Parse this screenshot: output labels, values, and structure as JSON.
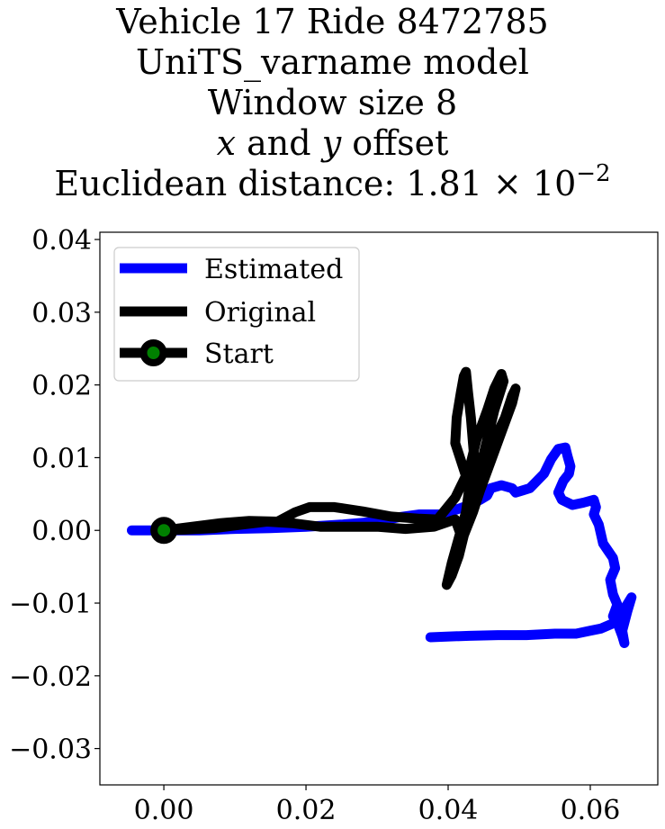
{
  "chart_data": {
    "type": "line",
    "title_lines": [
      "Vehicle 17 Ride 8472785",
      "UniTS_varname model",
      "Window size 8"
    ],
    "title_offset": {
      "x": "x",
      "and": " and ",
      "y": "y",
      "rest": " offset"
    },
    "title_distance": {
      "prefix": "Euclidean distance: ",
      "mantissa": "1.81",
      "times": " × 10",
      "exponent": "−2"
    },
    "xlabel": "",
    "ylabel": "",
    "xlim": [
      -0.009,
      0.0695
    ],
    "ylim": [
      -0.035,
      0.041
    ],
    "xticks": [
      0.0,
      0.02,
      0.04,
      0.06
    ],
    "xtick_labels": [
      "0.00",
      "0.02",
      "0.04",
      "0.06"
    ],
    "yticks": [
      0.04,
      0.03,
      0.02,
      0.01,
      0.0,
      -0.01,
      -0.02,
      -0.03
    ],
    "ytick_labels": [
      "0.04",
      "0.03",
      "0.02",
      "0.01",
      "0.00",
      "−0.01",
      "−0.02",
      "−0.03"
    ],
    "grid": false,
    "legend_position": "upper-left",
    "series": [
      {
        "name": "Estimated",
        "color": "#0000ff",
        "points": [
          [
            -0.0045,
            0.0
          ],
          [
            -0.002,
            0.0
          ],
          [
            0.0,
            0.0
          ],
          [
            0.005,
            0.0
          ],
          [
            0.01,
            0.0002
          ],
          [
            0.015,
            0.0003
          ],
          [
            0.02,
            0.0005
          ],
          [
            0.025,
            0.0008
          ],
          [
            0.03,
            0.0012
          ],
          [
            0.033,
            0.0018
          ],
          [
            0.036,
            0.0022
          ],
          [
            0.039,
            0.0022
          ],
          [
            0.041,
            0.0028
          ],
          [
            0.043,
            0.0035
          ],
          [
            0.0445,
            0.0042
          ],
          [
            0.0455,
            0.0048
          ],
          [
            0.046,
            0.0058
          ],
          [
            0.0475,
            0.0062
          ],
          [
            0.049,
            0.0058
          ],
          [
            0.0495,
            0.0052
          ],
          [
            0.0505,
            0.0055
          ],
          [
            0.0515,
            0.0058
          ],
          [
            0.0525,
            0.0068
          ],
          [
            0.0535,
            0.0078
          ],
          [
            0.0545,
            0.0098
          ],
          [
            0.0555,
            0.0112
          ],
          [
            0.0565,
            0.0114
          ],
          [
            0.0568,
            0.0102
          ],
          [
            0.0572,
            0.0088
          ],
          [
            0.057,
            0.0078
          ],
          [
            0.0562,
            0.0068
          ],
          [
            0.0555,
            0.0052
          ],
          [
            0.056,
            0.0042
          ],
          [
            0.0575,
            0.0035
          ],
          [
            0.059,
            0.0038
          ],
          [
            0.0605,
            0.0042
          ],
          [
            0.0608,
            0.0032
          ],
          [
            0.0605,
            0.0022
          ],
          [
            0.0612,
            0.0008
          ],
          [
            0.0615,
            -0.0005
          ],
          [
            0.0618,
            -0.0018
          ],
          [
            0.0625,
            -0.0028
          ],
          [
            0.0632,
            -0.0038
          ],
          [
            0.0635,
            -0.0052
          ],
          [
            0.0628,
            -0.0068
          ],
          [
            0.0632,
            -0.0088
          ],
          [
            0.0638,
            -0.0102
          ],
          [
            0.0632,
            -0.0118
          ],
          [
            0.064,
            -0.0132
          ],
          [
            0.0645,
            -0.0145
          ],
          [
            0.0648,
            -0.0155
          ],
          [
            0.0645,
            -0.0138
          ],
          [
            0.0652,
            -0.0112
          ],
          [
            0.0658,
            -0.0092
          ],
          [
            0.0648,
            -0.0108
          ],
          [
            0.0632,
            -0.0128
          ],
          [
            0.0615,
            -0.0135
          ],
          [
            0.06,
            -0.0138
          ],
          [
            0.058,
            -0.0142
          ],
          [
            0.055,
            -0.0142
          ],
          [
            0.051,
            -0.0144
          ],
          [
            0.047,
            -0.0144
          ],
          [
            0.043,
            -0.0145
          ],
          [
            0.0398,
            -0.0146
          ],
          [
            0.0375,
            -0.0147
          ]
        ]
      },
      {
        "name": "Original",
        "color": "#000000",
        "points": [
          [
            0.0,
            0.0
          ],
          [
            0.004,
            0.0005
          ],
          [
            0.008,
            0.001
          ],
          [
            0.012,
            0.0013
          ],
          [
            0.016,
            0.0012
          ],
          [
            0.0185,
            0.0025
          ],
          [
            0.0205,
            0.0032
          ],
          [
            0.024,
            0.0032
          ],
          [
            0.028,
            0.0026
          ],
          [
            0.032,
            0.0019
          ],
          [
            0.036,
            0.0016
          ],
          [
            0.0385,
            0.0015
          ],
          [
            0.041,
            0.0045
          ],
          [
            0.043,
            0.0085
          ],
          [
            0.044,
            0.0125
          ],
          [
            0.0455,
            0.0165
          ],
          [
            0.0465,
            0.0195
          ],
          [
            0.0475,
            0.0215
          ],
          [
            0.0478,
            0.0205
          ],
          [
            0.0465,
            0.0165
          ],
          [
            0.0455,
            0.0125
          ],
          [
            0.0445,
            0.0085
          ],
          [
            0.0435,
            0.0045
          ],
          [
            0.0425,
            0.0005
          ],
          [
            0.0415,
            -0.0035
          ],
          [
            0.0405,
            -0.0062
          ],
          [
            0.0398,
            -0.0075
          ],
          [
            0.0405,
            -0.0045
          ],
          [
            0.0415,
            -0.001
          ],
          [
            0.0425,
            0.0025
          ],
          [
            0.043,
            0.006
          ],
          [
            0.042,
            0.009
          ],
          [
            0.041,
            0.012
          ],
          [
            0.0412,
            0.0155
          ],
          [
            0.0418,
            0.019
          ],
          [
            0.0422,
            0.0212
          ],
          [
            0.0425,
            0.0218
          ],
          [
            0.0428,
            0.019
          ],
          [
            0.0432,
            0.0155
          ],
          [
            0.0435,
            0.012
          ],
          [
            0.0438,
            0.0085
          ],
          [
            0.044,
            0.005
          ],
          [
            0.045,
            0.0085
          ],
          [
            0.0465,
            0.0125
          ],
          [
            0.048,
            0.0155
          ],
          [
            0.049,
            0.0185
          ],
          [
            0.0495,
            0.0195
          ],
          [
            0.049,
            0.0175
          ],
          [
            0.0475,
            0.0135
          ],
          [
            0.046,
            0.0095
          ],
          [
            0.0445,
            0.0055
          ],
          [
            0.0435,
            0.0025
          ],
          [
            0.042,
            -0.0012
          ],
          [
            0.041,
            0.0015
          ],
          [
            0.038,
            0.0005
          ],
          [
            0.034,
            0.0002
          ],
          [
            0.03,
            0.0005
          ],
          [
            0.026,
            0.0005
          ],
          [
            0.022,
            0.0005
          ],
          [
            0.018,
            0.001
          ],
          [
            0.0145,
            0.0012
          ],
          [
            0.011,
            0.0008
          ],
          [
            0.007,
            0.0003
          ],
          [
            0.003,
            0.0001
          ],
          [
            0.0,
            0.0
          ]
        ]
      }
    ],
    "start_point": {
      "name": "Start",
      "x": 0.0,
      "y": 0.0,
      "color": "#008000",
      "edge_color": "#000000"
    },
    "legend": [
      {
        "label": "Estimated",
        "kind": "line",
        "color": "#0000ff"
      },
      {
        "label": "Original",
        "kind": "line",
        "color": "#000000"
      },
      {
        "label": "Start",
        "kind": "line-marker",
        "color": "#000000",
        "marker_color": "#008000"
      }
    ]
  }
}
